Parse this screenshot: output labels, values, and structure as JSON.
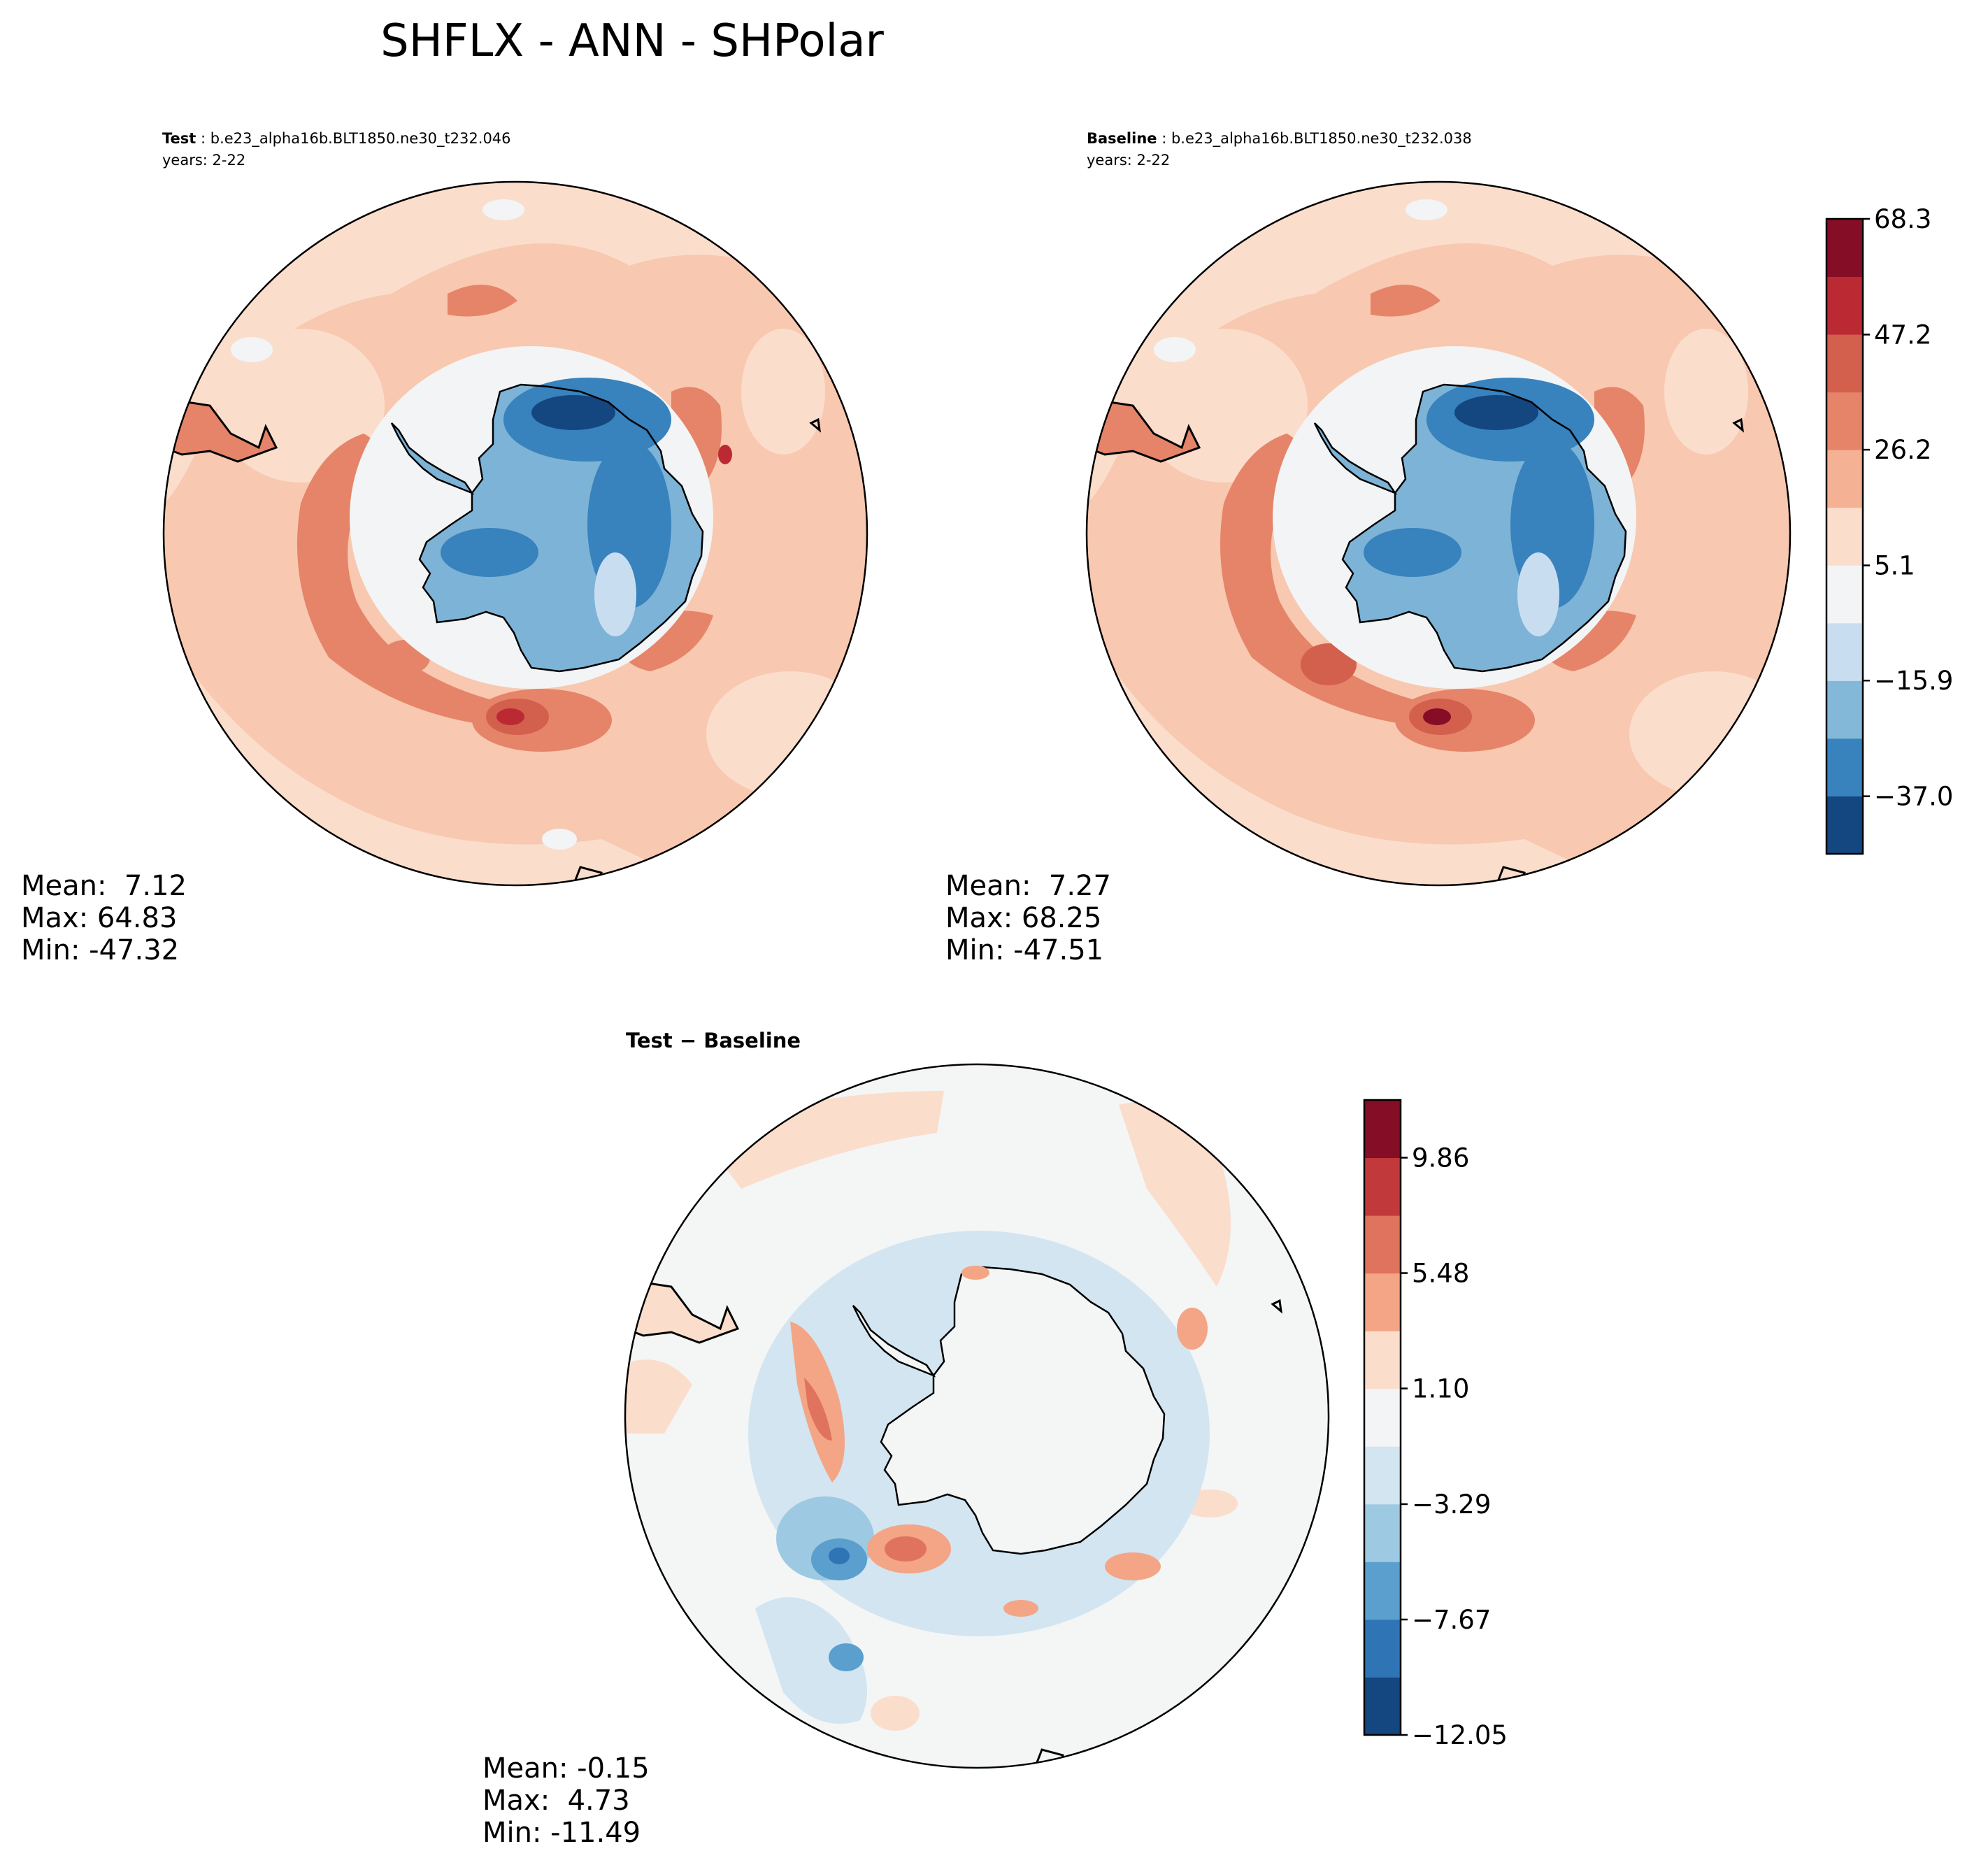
{
  "figure": {
    "title": "SHFLX - ANN - SHPolar"
  },
  "panels": [
    {
      "id": "test",
      "label_bold": "Test",
      "label_rest": " : b.e23_alpha16b.BLT1850.ne30_t232.046",
      "years": "years: 2-22",
      "stats": {
        "mean": "Mean:  7.12",
        "max": "Max: 64.83",
        "min": "Min: -47.32"
      }
    },
    {
      "id": "baseline",
      "label_bold": "Baseline",
      "label_rest": " : b.e23_alpha16b.BLT1850.ne30_t232.038",
      "years": "years: 2-22",
      "stats": {
        "mean": "Mean:  7.27",
        "max": "Max: 68.25",
        "min": "Min: -47.51"
      }
    },
    {
      "id": "diff",
      "label_bold": "Test − Baseline",
      "label_rest": "",
      "years": "",
      "stats": {
        "mean": "Mean: -0.15",
        "max": "Max:  4.73",
        "min": "Min: -11.49"
      }
    }
  ],
  "chart_data": [
    {
      "type": "heatmap",
      "projection": "south-polar-stereographic",
      "title": "Test : b.e23_alpha16b.BLT1850.ne30_t232.046",
      "subtitle": "years: 2-22",
      "summary": {
        "mean": 7.12,
        "max": 64.83,
        "min": -47.32
      }
    },
    {
      "type": "heatmap",
      "projection": "south-polar-stereographic",
      "title": "Baseline : b.e23_alpha16b.BLT1850.ne30_t232.038",
      "subtitle": "years: 2-22",
      "summary": {
        "mean": 7.27,
        "max": 68.25,
        "min": -47.51
      },
      "colorbar": {
        "range": [
          -47.5,
          68.3
        ],
        "levels": 11,
        "ticks": [
          "68.3",
          "47.2",
          "26.2",
          "5.1",
          "−15.9",
          "−37.0"
        ],
        "colors": [
          "#14467f",
          "#3882bd",
          "#83b8d8",
          "#c8def0",
          "#f3f4f5",
          "#fbddcc",
          "#f5b193",
          "#e58468",
          "#d35f4d",
          "#bb2a33",
          "#850d26"
        ]
      }
    },
    {
      "type": "heatmap",
      "projection": "south-polar-stereographic",
      "title": "Test − Baseline",
      "summary": {
        "mean": -0.15,
        "max": 4.73,
        "min": -11.49
      },
      "colorbar": {
        "range": [
          -12.05,
          12.05
        ],
        "levels": 11,
        "ticks": [
          "9.86",
          "5.48",
          "1.10",
          "−3.29",
          "−7.67",
          "−12.05"
        ],
        "colors": [
          "#14467f",
          "#2f74b5",
          "#5a9fcd",
          "#9dc9e2",
          "#d2e5f1",
          "#f3f4f5",
          "#fbddcc",
          "#f3a585",
          "#e0735d",
          "#c2393b",
          "#850d26"
        ]
      }
    }
  ],
  "colors": {
    "land_fill_test": "#7db3d6",
    "land_fill_diff": "#f4f5f5",
    "ocean_base_abs": "#f8c8b0",
    "ocean_base_diff": "#f4f5f5",
    "coastline": "#000000"
  }
}
